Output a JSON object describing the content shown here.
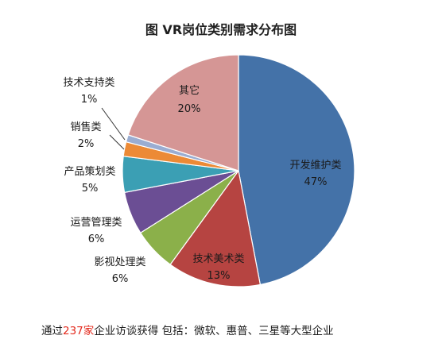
{
  "chart_data": {
    "type": "pie",
    "title": "图 VR岗位类别需求分布图",
    "series": [
      {
        "name": "开发维护类",
        "label": "47%",
        "value": 47,
        "color": "#4472a8"
      },
      {
        "name": "技术美术类",
        "label": "13%",
        "value": 13,
        "color": "#b64441"
      },
      {
        "name": "影视处理类",
        "label": "6%",
        "value": 6,
        "color": "#8bb04a"
      },
      {
        "name": "运营管理类",
        "label": "6%",
        "value": 6,
        "color": "#6b4e94"
      },
      {
        "name": "产品策划类",
        "label": "5%",
        "value": 5,
        "color": "#3b9fb4"
      },
      {
        "name": "销售类",
        "label": "2%",
        "value": 2,
        "color": "#ec8a36"
      },
      {
        "name": "技术支持类",
        "label": "1%",
        "value": 1,
        "color": "#9aadd2"
      },
      {
        "name": "其它",
        "label": "20%",
        "value": 20,
        "color": "#d59695"
      }
    ]
  },
  "footer": {
    "prefix": "通过",
    "highlight": "237家",
    "suffix": "企业访谈获得 包括：微软、惠普、三星等大型企业"
  }
}
